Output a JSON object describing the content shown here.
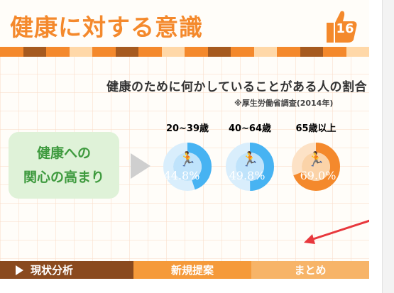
{
  "header": {
    "title": "健康に対する意識",
    "page_number": "16"
  },
  "chart": {
    "title": "健康のために何かしていることがある人の割合",
    "source": "※厚生労働省調査(2014年)"
  },
  "interest_box": {
    "line1": "健康への",
    "line2": "関心の高まり"
  },
  "chart_data": {
    "type": "pie",
    "title": "健康のために何かしていることがある人の割合",
    "categories": [
      "20~39歳",
      "40~64歳",
      "65歳以上"
    ],
    "values": [
      44.8,
      49.8,
      69.0
    ],
    "labels": [
      "44.8%",
      "49.8%",
      "69.0%"
    ],
    "colors": [
      "#47b3f2",
      "#47b3f2",
      "#f4892c"
    ]
  },
  "nav": {
    "current": "現状分析",
    "mid": "新規提案",
    "last": "まとめ"
  },
  "colors": {
    "accent_orange": "#f4892c",
    "accent_blue": "#47b3f2",
    "brown": "#8a4a1e",
    "green": "#3e9a3e"
  }
}
